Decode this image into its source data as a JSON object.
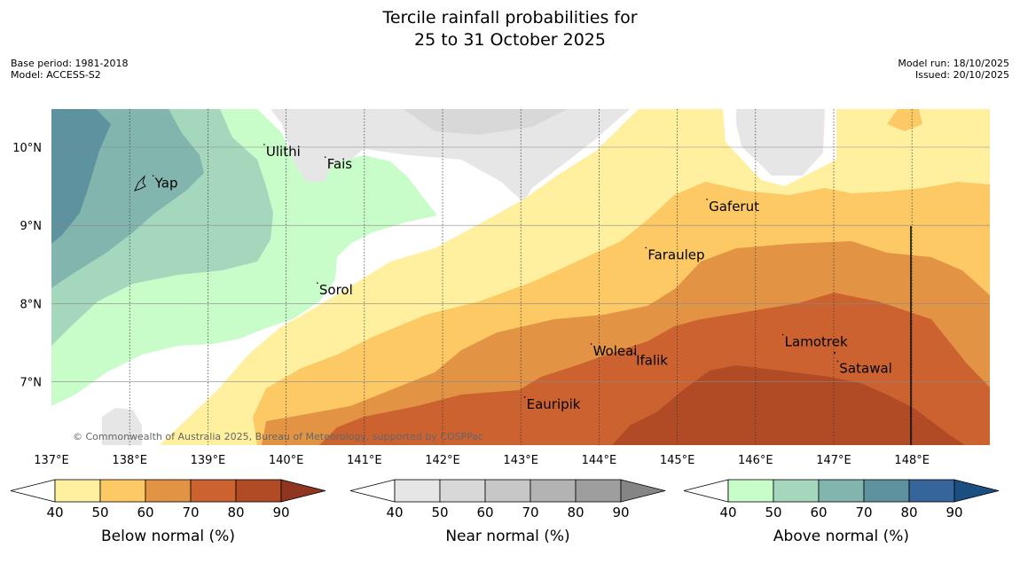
{
  "title_line1": "Tercile rainfall probabilities for",
  "title_line2": "25 to 31 October 2025",
  "base_period": "Base period: 1981-2018",
  "model": "Model: ACCESS-S2",
  "model_run": "Model run: 18/10/2025",
  "issued": "Issued: 20/10/2025",
  "copyright": "© Commonwealth of Australia 2025, Bureau of Meteorology, supported by COSPPac",
  "lon_labels": [
    "137°E",
    "138°E",
    "139°E",
    "140°E",
    "141°E",
    "142°E",
    "143°E",
    "144°E",
    "145°E",
    "146°E",
    "147°E",
    "148°E"
  ],
  "lat_labels": [
    "10°N",
    "9°N",
    "8°N",
    "7°N"
  ],
  "places": [
    {
      "name": "Yap",
      "lon": 138.3,
      "lat": 9.52
    },
    {
      "name": "Ulithi",
      "lon": 139.72,
      "lat": 9.92
    },
    {
      "name": "Fais",
      "lon": 140.5,
      "lat": 9.76
    },
    {
      "name": "Gaferut",
      "lon": 145.38,
      "lat": 9.22
    },
    {
      "name": "Faraulep",
      "lon": 144.6,
      "lat": 8.6
    },
    {
      "name": "Sorol",
      "lon": 140.4,
      "lat": 8.15
    },
    {
      "name": "Lamotrek",
      "lon": 146.35,
      "lat": 7.49
    },
    {
      "name": "Woleai",
      "lon": 143.9,
      "lat": 7.37
    },
    {
      "name": "Ifalik",
      "lon": 144.45,
      "lat": 7.25
    },
    {
      "name": "Satawal",
      "lon": 147.05,
      "lat": 7.15
    },
    {
      "name": "Eauripik",
      "lon": 143.05,
      "lat": 6.69
    }
  ],
  "colorbars": [
    {
      "label": "Below normal (%)",
      "ticks": [
        "40",
        "50",
        "60",
        "70",
        "80",
        "90"
      ],
      "colors": [
        "#fff0a0",
        "#fdc965",
        "#e29444",
        "#cc6230",
        "#b04b26",
        "#8f3520"
      ]
    },
    {
      "label": "Near normal (%)",
      "ticks": [
        "40",
        "50",
        "60",
        "70",
        "80",
        "90"
      ],
      "colors": [
        "#e6e6e6",
        "#d8d8d8",
        "#c7c7c7",
        "#b3b3b3",
        "#9e9e9e",
        "#858585"
      ]
    },
    {
      "label": "Above normal (%)",
      "ticks": [
        "40",
        "50",
        "60",
        "70",
        "80",
        "90"
      ],
      "colors": [
        "#c8fcc8",
        "#a5d7bd",
        "#82b5ad",
        "#5e929e",
        "#35659a",
        "#1b4f82"
      ]
    }
  ]
}
